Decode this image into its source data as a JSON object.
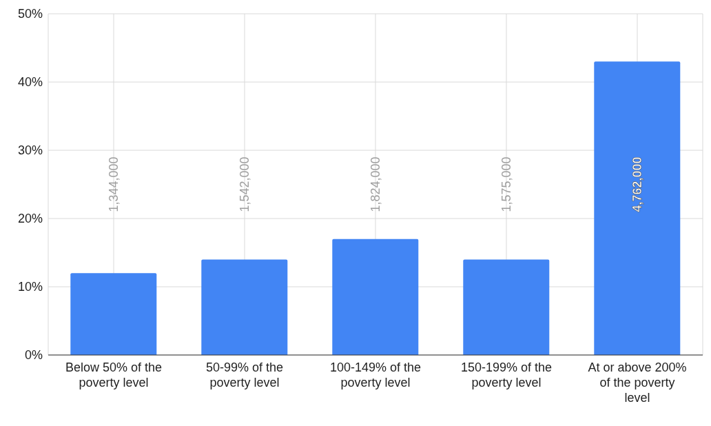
{
  "chart_data": {
    "type": "bar",
    "categories": [
      "Below 50% of the poverty level",
      "50-99% of the poverty level",
      "100-149% of the poverty level",
      "150-199% of the poverty level",
      "At or above 200% of the poverty level"
    ],
    "values": [
      12,
      14,
      17,
      14,
      43
    ],
    "color": "#4285f4",
    "annotations": [
      "1,344,000",
      "1,542,000",
      "1,824,000",
      "1,575,000",
      "4,762,000"
    ],
    "ylim": [
      0,
      50
    ],
    "yticks": [
      {
        "value": 0,
        "label": "0%"
      },
      {
        "value": 10,
        "label": "10%"
      },
      {
        "value": 20,
        "label": "20%"
      },
      {
        "value": 30,
        "label": "30%"
      },
      {
        "value": 40,
        "label": "40%"
      },
      {
        "value": 50,
        "label": "50%"
      }
    ],
    "grid": true
  }
}
